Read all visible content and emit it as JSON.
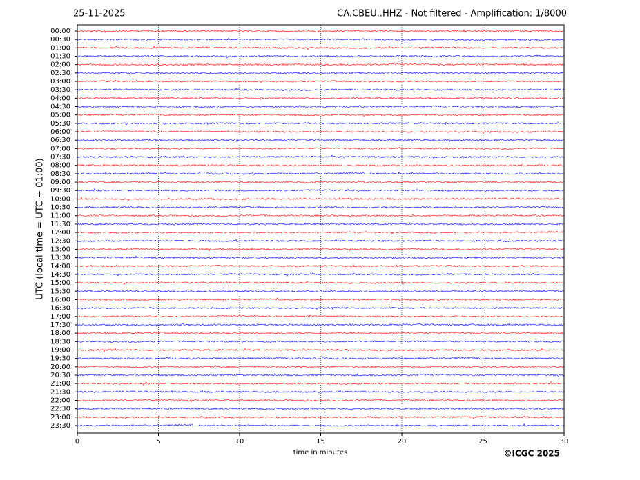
{
  "chart_data": {
    "type": "helicorder",
    "date": "25-11-2025",
    "title": "CA.CBEU..HHZ - Not filtered - Amplification: 1/8000",
    "ylabel": "UTC (local time = UTC + 01:00)",
    "xlabel": "time in minutes",
    "credit": "©ICGC 2025",
    "categories": [
      "00:00",
      "00:30",
      "01:00",
      "01:30",
      "02:00",
      "02:30",
      "03:00",
      "03:30",
      "04:00",
      "04:30",
      "05:00",
      "05:30",
      "06:00",
      "06:30",
      "07:00",
      "07:30",
      "08:00",
      "08:30",
      "09:00",
      "09:30",
      "10:00",
      "10:30",
      "11:00",
      "11:30",
      "12:00",
      "12:30",
      "13:00",
      "13:30",
      "14:00",
      "14:30",
      "15:00",
      "15:30",
      "16:00",
      "16:30",
      "17:00",
      "17:30",
      "18:00",
      "18:30",
      "19:00",
      "19:30",
      "20:00",
      "20:30",
      "21:00",
      "21:30",
      "22:00",
      "22:30",
      "23:00",
      "23:30"
    ],
    "colors": [
      "#ff0000",
      "#0000ff"
    ],
    "xlim": [
      0,
      30
    ],
    "xticks": [
      0,
      5,
      10,
      15,
      20,
      25,
      30
    ],
    "grid": true
  }
}
